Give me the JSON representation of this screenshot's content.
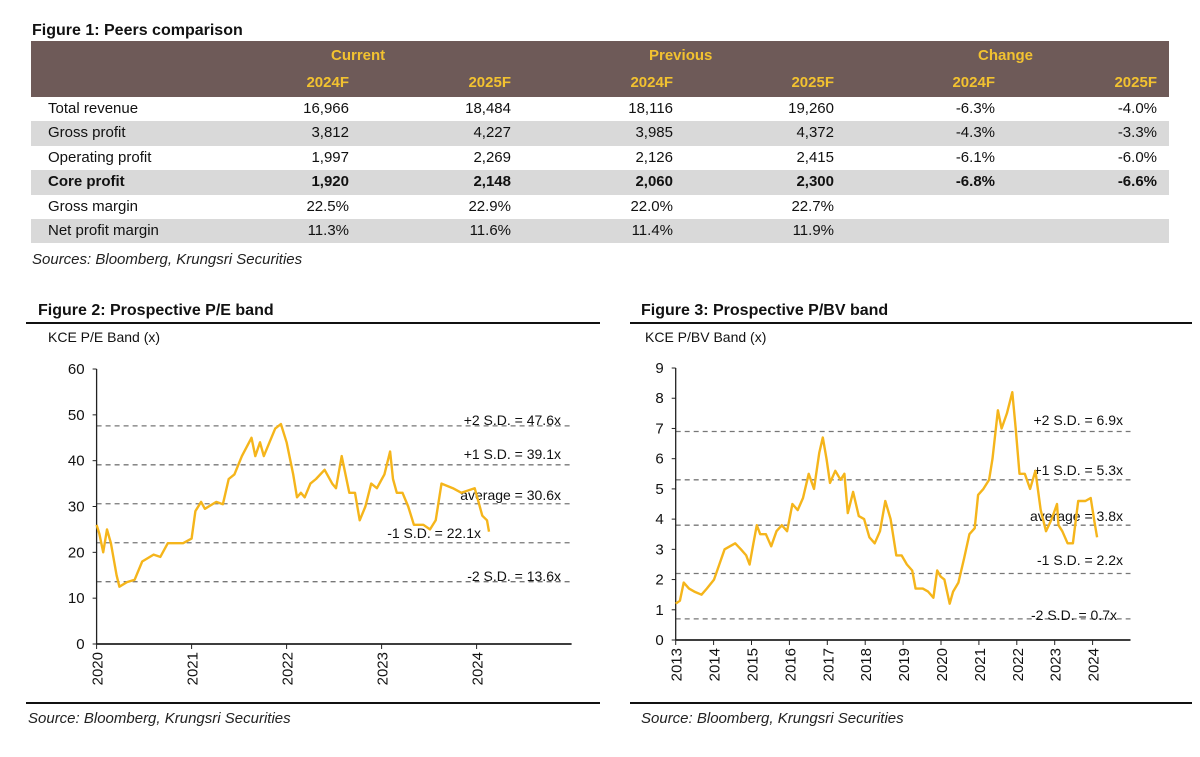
{
  "figure1": {
    "title": "Figure 1: Peers comparison",
    "groups": [
      "Current",
      "Previous",
      "Change"
    ],
    "columns": [
      "2024F",
      "2025F",
      "2024F",
      "2025F",
      "2024F",
      "2025F"
    ],
    "rows": [
      {
        "label": "Total revenue",
        "values": [
          "16,966",
          "18,484",
          "18,116",
          "19,260",
          "-6.3%",
          "-4.0%"
        ],
        "bold": false
      },
      {
        "label": "Gross profit",
        "values": [
          "3,812",
          "4,227",
          "3,985",
          "4,372",
          "-4.3%",
          "-3.3%"
        ],
        "bold": false
      },
      {
        "label": "Operating profit",
        "values": [
          "1,997",
          "2,269",
          "2,126",
          "2,415",
          "-6.1%",
          "-6.0%"
        ],
        "bold": false
      },
      {
        "label": "Core profit",
        "values": [
          "1,920",
          "2,148",
          "2,060",
          "2,300",
          "-6.8%",
          "-6.6%"
        ],
        "bold": true
      },
      {
        "label": "Gross margin",
        "values": [
          "22.5%",
          "22.9%",
          "22.0%",
          "22.7%",
          "",
          ""
        ],
        "bold": false
      },
      {
        "label": "Net profit margin",
        "values": [
          "11.3%",
          "11.6%",
          "11.4%",
          "11.9%",
          "",
          ""
        ],
        "bold": false
      }
    ],
    "source": "Sources: Bloomberg, Krungsri Securities"
  },
  "colors": {
    "header_bg": "#6e5a58",
    "header_text": "#f2c230",
    "stripe": "#d9d9d9",
    "line": "#f5b51b",
    "band": "#777777"
  },
  "chart_data": [
    {
      "type": "line",
      "title": "Figure 2: Prospective P/E band",
      "ylabel": "KCE P/E Band (x)",
      "source": "Source: Bloomberg, Krungsri Securities",
      "ylim": [
        0,
        60
      ],
      "yticks": [
        "0",
        "10",
        "20",
        "30",
        "40",
        "50",
        "60"
      ],
      "xlim": [
        2020,
        2025
      ],
      "xticks": [
        "2020",
        "2021",
        "2022",
        "2023",
        "2024"
      ],
      "bands": [
        {
          "label": "+2 S.D. = 47.6x",
          "value": 47.6
        },
        {
          "label": "+1 S.D. = 39.1x",
          "value": 39.1
        },
        {
          "label": "average = 30.6x",
          "value": 30.6
        },
        {
          "label": "-1 S.D. = 22.1x",
          "value": 22.1
        },
        {
          "label": "-2 S.D. = 13.6x",
          "value": 13.6
        }
      ],
      "series": [
        {
          "name": "P/E",
          "x": [
            2020.0,
            2020.03,
            2020.07,
            2020.11,
            2020.15,
            2020.21,
            2020.24,
            2020.32,
            2020.4,
            2020.48,
            2020.6,
            2020.67,
            2020.75,
            2020.83,
            2020.91,
            2021.0,
            2021.04,
            2021.1,
            2021.14,
            2021.26,
            2021.33,
            2021.39,
            2021.45,
            2021.53,
            2021.63,
            2021.67,
            2021.72,
            2021.76,
            2021.88,
            2021.94,
            2022.0,
            2022.07,
            2022.11,
            2022.15,
            2022.19,
            2022.25,
            2022.31,
            2022.4,
            2022.48,
            2022.52,
            2022.58,
            2022.66,
            2022.72,
            2022.77,
            2022.83,
            2022.89,
            2022.95,
            2023.03,
            2023.09,
            2023.12,
            2023.16,
            2023.22,
            2023.28,
            2023.34,
            2023.44,
            2023.51,
            2023.57,
            2023.63,
            2023.75,
            2023.84,
            2023.98,
            2024.06,
            2024.11,
            2024.13
          ],
          "y": [
            26,
            24,
            20,
            25,
            22,
            15,
            12.5,
            13.5,
            14,
            18,
            19.5,
            19,
            22,
            22,
            22,
            23,
            29,
            31,
            29.5,
            31,
            30.5,
            36,
            37,
            41,
            45,
            41,
            44,
            41,
            47,
            48,
            44,
            37,
            32,
            33,
            32,
            35,
            36,
            38,
            35,
            34,
            41,
            33,
            33,
            27,
            30,
            35,
            34,
            37,
            42,
            36,
            33,
            33,
            30,
            26,
            26,
            25,
            27,
            35,
            34,
            33,
            34,
            28,
            27,
            24.5
          ]
        }
      ]
    },
    {
      "type": "line",
      "title": "Figure 3: Prospective P/BV band",
      "ylabel": "KCE P/BV Band (x)",
      "source": "Source: Bloomberg, Krungsri Securities",
      "ylim": [
        0,
        9
      ],
      "yticks": [
        "0",
        "1",
        "2",
        "3",
        "4",
        "5",
        "6",
        "7",
        "8",
        "9"
      ],
      "xlim": [
        2013,
        2025
      ],
      "xticks": [
        "2013",
        "2014",
        "2015",
        "2016",
        "2017",
        "2018",
        "2019",
        "2020",
        "2021",
        "2022",
        "2023",
        "2024"
      ],
      "bands": [
        {
          "label": "+2 S.D. = 6.9x",
          "value": 6.9
        },
        {
          "label": "+1 S.D. = 5.3x",
          "value": 5.3
        },
        {
          "label": "average = 3.8x",
          "value": 3.8
        },
        {
          "label": "-1 S.D. = 2.2x",
          "value": 2.2
        },
        {
          "label": "-2 S.D. = 0.7x",
          "value": 0.7
        }
      ],
      "series": [
        {
          "name": "P/BV",
          "x": [
            2013.0,
            2013.11,
            2013.21,
            2013.35,
            2013.49,
            2013.68,
            2013.82,
            2014.01,
            2014.15,
            2014.29,
            2014.43,
            2014.57,
            2014.72,
            2014.86,
            2014.95,
            2015.05,
            2015.14,
            2015.23,
            2015.38,
            2015.52,
            2015.66,
            2015.8,
            2015.94,
            2016.08,
            2016.22,
            2016.36,
            2016.51,
            2016.65,
            2016.79,
            2016.88,
            2016.98,
            2017.07,
            2017.21,
            2017.35,
            2017.45,
            2017.54,
            2017.68,
            2017.83,
            2017.97,
            2018.11,
            2018.25,
            2018.39,
            2018.53,
            2018.67,
            2018.82,
            2018.96,
            2019.1,
            2019.24,
            2019.33,
            2019.52,
            2019.66,
            2019.8,
            2019.9,
            2019.99,
            2020.09,
            2020.23,
            2020.32,
            2020.46,
            2020.61,
            2020.75,
            2020.89,
            2020.98,
            2021.12,
            2021.27,
            2021.36,
            2021.5,
            2021.6,
            2021.74,
            2021.88,
            2021.97,
            2022.07,
            2022.21,
            2022.35,
            2022.49,
            2022.63,
            2022.77,
            2022.92,
            2023.06,
            2023.1,
            2023.2,
            2023.34,
            2023.48,
            2023.62,
            2023.81,
            2023.95,
            2024.05,
            2024.12
          ],
          "y": [
            1.2,
            1.3,
            1.9,
            1.7,
            1.6,
            1.5,
            1.7,
            2.0,
            2.5,
            3.0,
            3.1,
            3.2,
            3.0,
            2.8,
            2.5,
            3.2,
            3.8,
            3.5,
            3.5,
            3.1,
            3.6,
            3.8,
            3.6,
            4.5,
            4.3,
            4.7,
            5.5,
            5.0,
            6.2,
            6.7,
            6.0,
            5.2,
            5.6,
            5.3,
            5.5,
            4.2,
            4.9,
            4.1,
            4.0,
            3.4,
            3.2,
            3.6,
            4.6,
            4.0,
            2.8,
            2.8,
            2.5,
            2.3,
            1.7,
            1.7,
            1.6,
            1.4,
            2.3,
            2.1,
            2.0,
            1.2,
            1.6,
            1.9,
            2.7,
            3.5,
            3.7,
            4.8,
            5.0,
            5.3,
            6.0,
            7.6,
            7.0,
            7.5,
            8.2,
            7.0,
            5.5,
            5.5,
            5.0,
            5.6,
            4.3,
            3.6,
            4.0,
            4.5,
            3.8,
            3.6,
            3.2,
            3.2,
            4.6,
            4.6,
            4.7,
            3.9,
            3.4
          ]
        }
      ]
    }
  ]
}
